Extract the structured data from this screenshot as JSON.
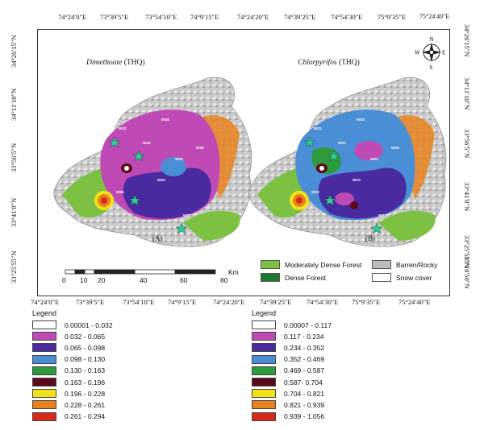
{
  "top_ticks": [
    "74°24′0″E",
    "73°39′5″E",
    "73°54′10″E",
    "74°9′15″E",
    "74°24′20″E",
    "74°39′25″E",
    "74°54′30″E",
    "75°9′35″E",
    "75°24′40″E"
  ],
  "bottom_ticks": [
    "74°24′0″E",
    "73°39′5″E",
    "73°54′10″E",
    "74°9′15″E",
    "74°24′20″E",
    "74°39′25″E",
    "74°54′30″E",
    "75°9′35″E",
    "75°24′40″E"
  ],
  "left_ticks": [
    "34°26′15″N",
    "34°11′10″N",
    "33°56′5″N",
    "33°41′0″N",
    "33°25′55″N"
  ],
  "right_ticks": [
    "34°26′15″N",
    "34°11′10″N",
    "33°56′5″N",
    "33°41′0″N",
    "33°25′55″N",
    "33°10′50″N"
  ],
  "panel_a": {
    "title_italic": "Dimethoate",
    "title_rest": " (THQ)",
    "letter": "(A)"
  },
  "panel_b": {
    "title_italic": "Chlorpyrifos",
    "title_rest": " (THQ)",
    "letter": "(B)"
  },
  "compass": {
    "n": "N",
    "s": "S",
    "e": "E",
    "w": "W"
  },
  "site_labels": [
    "WS8",
    "WS1",
    "WS2",
    "WS3",
    "WS4",
    "WS5",
    "WS6",
    "WS7"
  ],
  "scale": {
    "ticks": [
      "0",
      "10",
      "20",
      "40",
      "60",
      "80"
    ],
    "unit": "Km"
  },
  "land_cover": [
    {
      "label": "Moderately Dense Forest",
      "color": "#7cc142"
    },
    {
      "label": "Dense Forest",
      "color": "#1f7a32"
    },
    {
      "label": "Barren/Rocky",
      "color": "#bdbdbd"
    },
    {
      "label": "Snow cover",
      "color": "#ffffff"
    }
  ],
  "legend_a": {
    "title": "Legend",
    "items": [
      {
        "label": "0.00001 - 0.032",
        "color": "#ffffff"
      },
      {
        "label": "0.032 - 0.065",
        "color": "#c04ab5"
      },
      {
        "label": "0.065 - 0.098",
        "color": "#4a2aa0"
      },
      {
        "label": "0.098 - 0.130",
        "color": "#4a8fd6"
      },
      {
        "label": "0.130 - 0.163",
        "color": "#2e9a3e"
      },
      {
        "label": "0.163 - 0.196",
        "color": "#5a0a1a"
      },
      {
        "label": "0.196 - 0.228",
        "color": "#f2e21a"
      },
      {
        "label": "0.228 - 0.261",
        "color": "#e8821e"
      },
      {
        "label": "0.261 - 0.294",
        "color": "#d62a1a"
      }
    ]
  },
  "legend_b": {
    "title": "Legend",
    "items": [
      {
        "label": "0.00007 - 0.117",
        "color": "#ffffff"
      },
      {
        "label": "0.117 - 0.234",
        "color": "#c04ab5"
      },
      {
        "label": "0.234 - 0.352",
        "color": "#4a2aa0"
      },
      {
        "label": "0.352 - 0.469",
        "color": "#4a8fd6"
      },
      {
        "label": "0.469 - 0.587",
        "color": "#2e9a3e"
      },
      {
        "label": "0.587- 0.704",
        "color": "#5a0a1a"
      },
      {
        "label": "0.704 - 0.821",
        "color": "#f2e21a"
      },
      {
        "label": "0.821 - 0.939",
        "color": "#e8821e"
      },
      {
        "label": "0.939 - 1.056",
        "color": "#d62a1a"
      }
    ]
  }
}
